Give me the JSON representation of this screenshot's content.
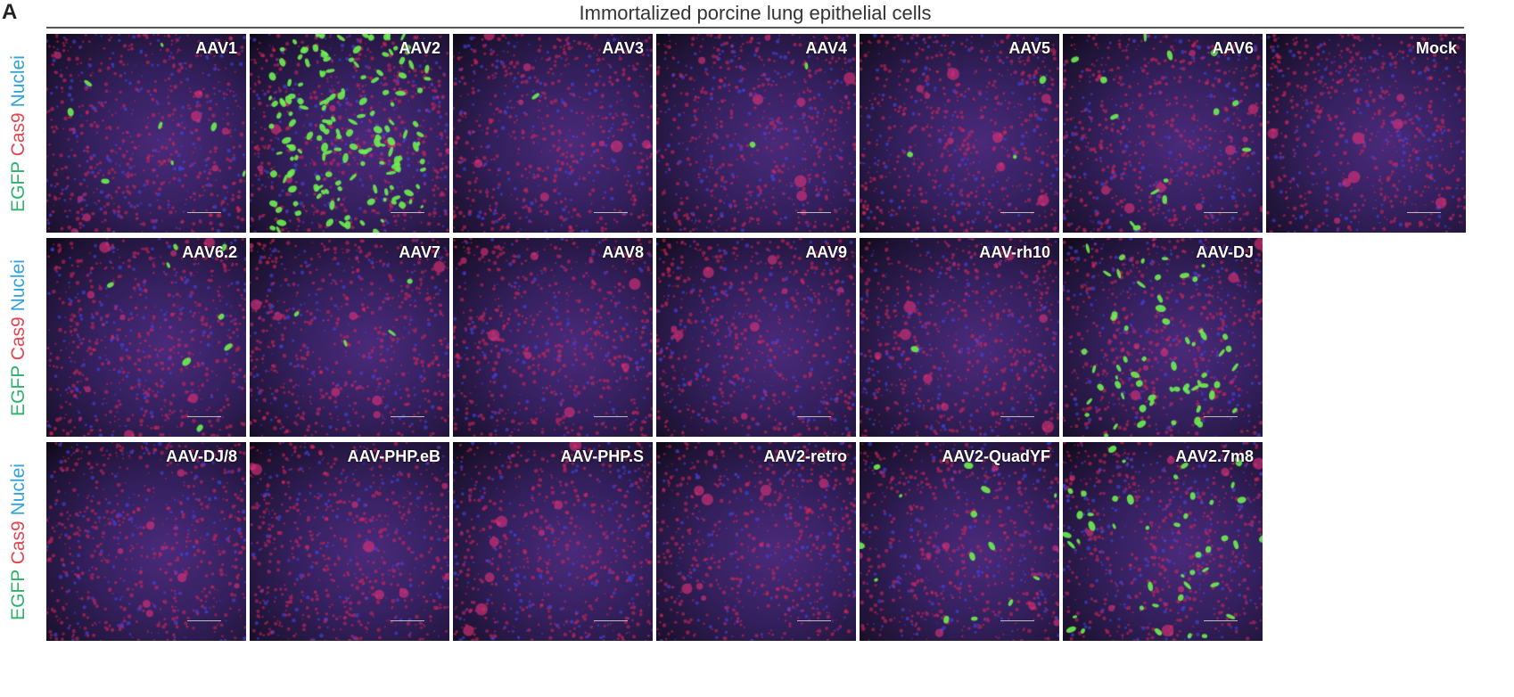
{
  "panel_letter": "A",
  "title": "Immortalized porcine lung epithelial cells",
  "row_label": {
    "egfp": "EGFP",
    "cas9": "Cas9",
    "nuclei": "Nuclei"
  },
  "colors": {
    "egfp": "#2fb36b",
    "cas9": "#e8444f",
    "nuclei": "#33a3dc"
  },
  "rows": [
    [
      "AAV1",
      "AAV2",
      "AAV3",
      "AAV4",
      "AAV5",
      "AAV6",
      "Mock"
    ],
    [
      "AAV6.2",
      "AAV7",
      "AAV8",
      "AAV9",
      "AAV-rh10",
      "AAV-DJ"
    ],
    [
      "AAV-DJ/8",
      "AAV-PHP.eB",
      "AAV-PHP.S",
      "AAV2-retro",
      "AAV2-QuadYF",
      "AAV2.7m8"
    ]
  ]
}
